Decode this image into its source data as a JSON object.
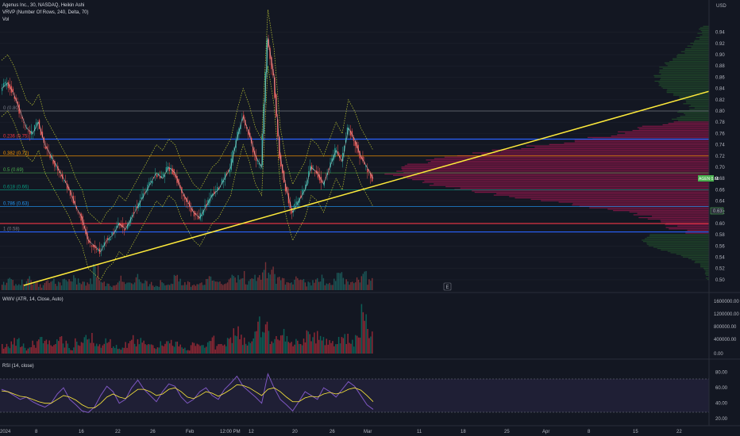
{
  "header": {
    "title": "Agenus Inc., 30, NASDAQ, Heikin Ashi",
    "vrvp": "VRVP (Number Of Rows, 240, Delta, 70)",
    "vol": "Vol",
    "currency": "USD"
  },
  "price_badges": {
    "last": "AGEN  0.68",
    "level": "0.63"
  },
  "marker": "E",
  "fib_levels": [
    {
      "label": "0 (0.80)",
      "value": 0.8,
      "color": "#787b86"
    },
    {
      "label": "0.236 (0.75)",
      "value": 0.75,
      "color": "#f23645"
    },
    {
      "label": "0.382 (0.72)",
      "value": 0.72,
      "color": "#ff9800"
    },
    {
      "label": "0.5 (0.69)",
      "value": 0.69,
      "color": "#4caf50"
    },
    {
      "label": "0.618 (0.66)",
      "value": 0.66,
      "color": "#089981"
    },
    {
      "label": "0.786 (0.63)",
      "value": 0.63,
      "color": "#2196f3"
    },
    {
      "label": "1 (0.58)",
      "value": 0.585,
      "color": "#787b86"
    }
  ],
  "x_ticks": [
    "2024",
    "8",
    "16",
    "22",
    "26",
    "Feb",
    "12:00 PM",
    "12",
    "20",
    "26",
    "Mar",
    "11",
    "18",
    "25",
    "Apr",
    "8",
    "15",
    "22"
  ],
  "panes": {
    "price": {
      "ticks": [
        "0.94",
        "0.92",
        "0.90",
        "0.88",
        "0.86",
        "0.84",
        "0.82",
        "0.80",
        "0.78",
        "0.76",
        "0.74",
        "0.72",
        "0.70",
        "0.68",
        "0.66",
        "0.64",
        "0.62",
        "0.60",
        "0.58",
        "0.56",
        "0.54",
        "0.52",
        "0.50"
      ]
    },
    "wwv": {
      "title": "WWV (ATR, 14, Close, Auto)",
      "ticks": [
        "1600000.00",
        "1200000.00",
        "800000.00",
        "400000.00",
        "0.00"
      ]
    },
    "rsi": {
      "title": "RSI (14, close)",
      "ticks": [
        "80.00",
        "60.00",
        "40.00",
        "20.00"
      ]
    }
  },
  "chart_data": {
    "type": "line",
    "price_range": [
      0.49,
      0.955
    ],
    "hline_levels": [
      0.75,
      0.6,
      0.585
    ],
    "trendline": {
      "from": [
        0,
        0.49
      ],
      "to": [
        1,
        0.835
      ]
    },
    "price_close": [
      0.84,
      0.85,
      0.83,
      0.8,
      0.77,
      0.76,
      0.78,
      0.74,
      0.72,
      0.7,
      0.68,
      0.66,
      0.63,
      0.61,
      0.57,
      0.56,
      0.55,
      0.57,
      0.58,
      0.6,
      0.59,
      0.61,
      0.63,
      0.65,
      0.67,
      0.69,
      0.68,
      0.7,
      0.69,
      0.66,
      0.64,
      0.62,
      0.61,
      0.63,
      0.65,
      0.66,
      0.68,
      0.7,
      0.75,
      0.79,
      0.76,
      0.72,
      0.7,
      0.93,
      0.86,
      0.72,
      0.66,
      0.62,
      0.64,
      0.66,
      0.7,
      0.69,
      0.67,
      0.7,
      0.73,
      0.71,
      0.77,
      0.75,
      0.72,
      0.7,
      0.68
    ],
    "volume": [
      0.3,
      0.5,
      0.2,
      0.4,
      0.6,
      0.3,
      0.2,
      0.5,
      0.4,
      0.3,
      0.7,
      0.5,
      0.4,
      0.3,
      0.5,
      0.9,
      0.4,
      0.3,
      0.2,
      0.5,
      0.4,
      0.3,
      0.6,
      0.4,
      0.3,
      0.2,
      0.4,
      0.3,
      0.5,
      0.4,
      0.3,
      0.2,
      0.3,
      0.4,
      0.5,
      0.3,
      0.4,
      0.6,
      0.5,
      0.7,
      0.4,
      0.5,
      0.6,
      1.0,
      0.8,
      0.5,
      0.4,
      0.3,
      0.5,
      0.4,
      0.3,
      0.4,
      0.5,
      0.3,
      0.4,
      0.6,
      0.4,
      0.3,
      0.5,
      0.9,
      0.4
    ],
    "wwv": [
      0.15,
      0.2,
      0.25,
      0.18,
      0.1,
      0.2,
      0.3,
      0.22,
      0.15,
      0.28,
      0.2,
      0.1,
      0.25,
      0.3,
      0.35,
      0.2,
      0.15,
      0.25,
      0.2,
      0.1,
      0.18,
      0.3,
      0.25,
      0.2,
      0.15,
      0.1,
      0.22,
      0.28,
      0.2,
      0.15,
      0.1,
      0.18,
      0.25,
      0.2,
      0.28,
      0.15,
      0.2,
      0.35,
      0.45,
      0.3,
      0.25,
      0.4,
      0.6,
      0.5,
      0.3,
      0.35,
      0.4,
      0.2,
      0.3,
      0.25,
      0.4,
      0.35,
      0.3,
      0.25,
      0.2,
      0.3,
      0.35,
      0.25,
      0.3,
      0.8,
      0.4
    ],
    "rsi": [
      58,
      55,
      50,
      45,
      48,
      42,
      38,
      35,
      40,
      52,
      60,
      45,
      38,
      30,
      28,
      35,
      50,
      62,
      55,
      40,
      45,
      60,
      70,
      58,
      50,
      42,
      55,
      65,
      62,
      48,
      40,
      45,
      55,
      60,
      50,
      45,
      58,
      66,
      75,
      62,
      55,
      48,
      40,
      78,
      60,
      45,
      38,
      30,
      42,
      55,
      50,
      45,
      60,
      55,
      48,
      58,
      68,
      62,
      50,
      38,
      32
    ],
    "rsi_ma": [
      56,
      55,
      52,
      49,
      48,
      45,
      42,
      40,
      40,
      45,
      50,
      48,
      44,
      38,
      34,
      34,
      40,
      48,
      52,
      48,
      46,
      52,
      58,
      58,
      55,
      50,
      52,
      58,
      60,
      55,
      48,
      46,
      50,
      55,
      53,
      49,
      53,
      58,
      64,
      63,
      60,
      55,
      50,
      58,
      60,
      55,
      48,
      42,
      42,
      47,
      49,
      48,
      52,
      54,
      52,
      54,
      58,
      60,
      57,
      50,
      42
    ],
    "rsi_range": [
      15,
      90
    ]
  }
}
